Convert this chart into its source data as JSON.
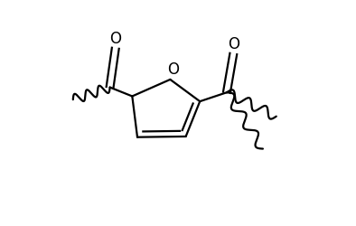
{
  "figure_width": 3.94,
  "figure_height": 2.5,
  "dpi": 100,
  "background_color": "#ffffff",
  "line_color": "#000000",
  "line_width": 1.6,
  "oxygen_label": "O",
  "font_size": 12
}
